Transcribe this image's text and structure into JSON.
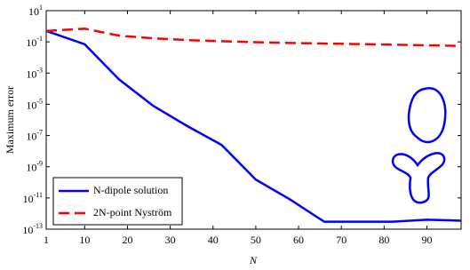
{
  "chart_data": {
    "type": "line",
    "xlabel": "N",
    "ylabel": "Maximum error",
    "ylog": true,
    "xlim": [
      1,
      98
    ],
    "ylim": [
      1e-13,
      10
    ],
    "xticks": [
      1,
      10,
      20,
      30,
      40,
      50,
      60,
      70,
      80,
      90
    ],
    "yticks": [
      {
        "value": 10,
        "label": "10^1"
      },
      {
        "value": 0.1,
        "label": "10^-1"
      },
      {
        "value": 0.001,
        "label": "10^-3"
      },
      {
        "value": 1e-05,
        "label": "10^-5"
      },
      {
        "value": 1e-07,
        "label": "10^-7"
      },
      {
        "value": 1e-09,
        "label": "10^-9"
      },
      {
        "value": 1e-11,
        "label": "10^-11"
      },
      {
        "value": 1e-13,
        "label": "10^-13"
      }
    ],
    "legend_position": "lower left",
    "series": [
      {
        "name": "N-dipole solution",
        "color": "#0000ff",
        "dash": false,
        "x": [
          1,
          10,
          18,
          26,
          34,
          42,
          50,
          58,
          66,
          74,
          82,
          90,
          98
        ],
        "values": [
          0.5,
          0.07,
          0.0004,
          8e-06,
          4e-07,
          2.5e-08,
          1.5e-10,
          8e-12,
          3e-13,
          3e-13,
          3e-13,
          4e-13,
          3.5e-13
        ]
      },
      {
        "name": "2N-point Nyström",
        "color": "#ff0000",
        "dash": true,
        "x": [
          1,
          10,
          18,
          26,
          34,
          42,
          50,
          58,
          66,
          74,
          82,
          90,
          98
        ],
        "values": [
          0.5,
          0.7,
          0.25,
          0.17,
          0.13,
          0.11,
          0.095,
          0.085,
          0.078,
          0.072,
          0.066,
          0.06,
          0.055
        ]
      }
    ]
  }
}
